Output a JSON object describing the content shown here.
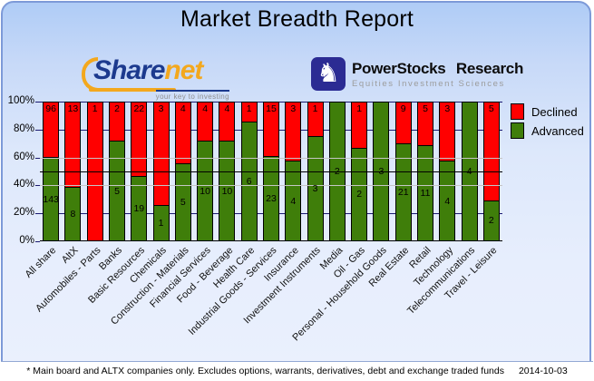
{
  "header": {
    "title": "Market Breadth Report"
  },
  "logos": {
    "sharenet": {
      "word_primary": "Share",
      "word_secondary": "net",
      "tagline": "your key to investing"
    },
    "powerstocks": {
      "title": "PowerStocks Research",
      "subtitle": "Equities Investment Sciences",
      "icon": "knight-icon",
      "icon_glyph": "♞"
    }
  },
  "footer": {
    "note": "* Main board and ALTX companies only. Excludes options, warrants, derivatives, debt and exchange traded funds",
    "date": "2014-10-03"
  },
  "chart_data": {
    "type": "bar",
    "subtype": "stacked-100-percent",
    "title": "Market Breadth Report",
    "categories": [
      "All share",
      "AltX",
      "Automobiles - Parts",
      "Banks",
      "Basic Resources",
      "Chemicals",
      "Construction - Materials",
      "Financial Services",
      "Food - Beverage",
      "Health Care",
      "Industrial Goods - Services",
      "Insurance",
      "Investment Instruments",
      "Media",
      "Oil - Gas",
      "Personal - Household Goods",
      "Real Estate",
      "Retail",
      "Technology",
      "Telecommunications",
      "Travel - Leisure"
    ],
    "series": [
      {
        "name": "Declined",
        "color": "#ff0000",
        "values": [
          96,
          13,
          1,
          2,
          22,
          3,
          4,
          4,
          4,
          1,
          15,
          3,
          1,
          0,
          1,
          0,
          9,
          5,
          3,
          0,
          5
        ]
      },
      {
        "name": "Advanced",
        "color": "#3f7e0a",
        "values": [
          143,
          8,
          0,
          5,
          19,
          1,
          5,
          10,
          10,
          6,
          23,
          4,
          3,
          2,
          2,
          3,
          21,
          11,
          4,
          4,
          2
        ]
      }
    ],
    "xlabel": "",
    "ylabel": "",
    "ylim": [
      0,
      100
    ],
    "y_ticks": [
      "0%",
      "20%",
      "40%",
      "60%",
      "80%",
      "100%"
    ],
    "legend_position": "right",
    "grid": {
      "navy_behind_percents": [
        20,
        80,
        100
      ],
      "gray_front_percents": [
        40,
        60
      ],
      "black_front_percents": [
        50
      ],
      "navy_color": "#1a1a70",
      "gray_color": "#c6c6c6",
      "black_color": "#000000"
    }
  }
}
